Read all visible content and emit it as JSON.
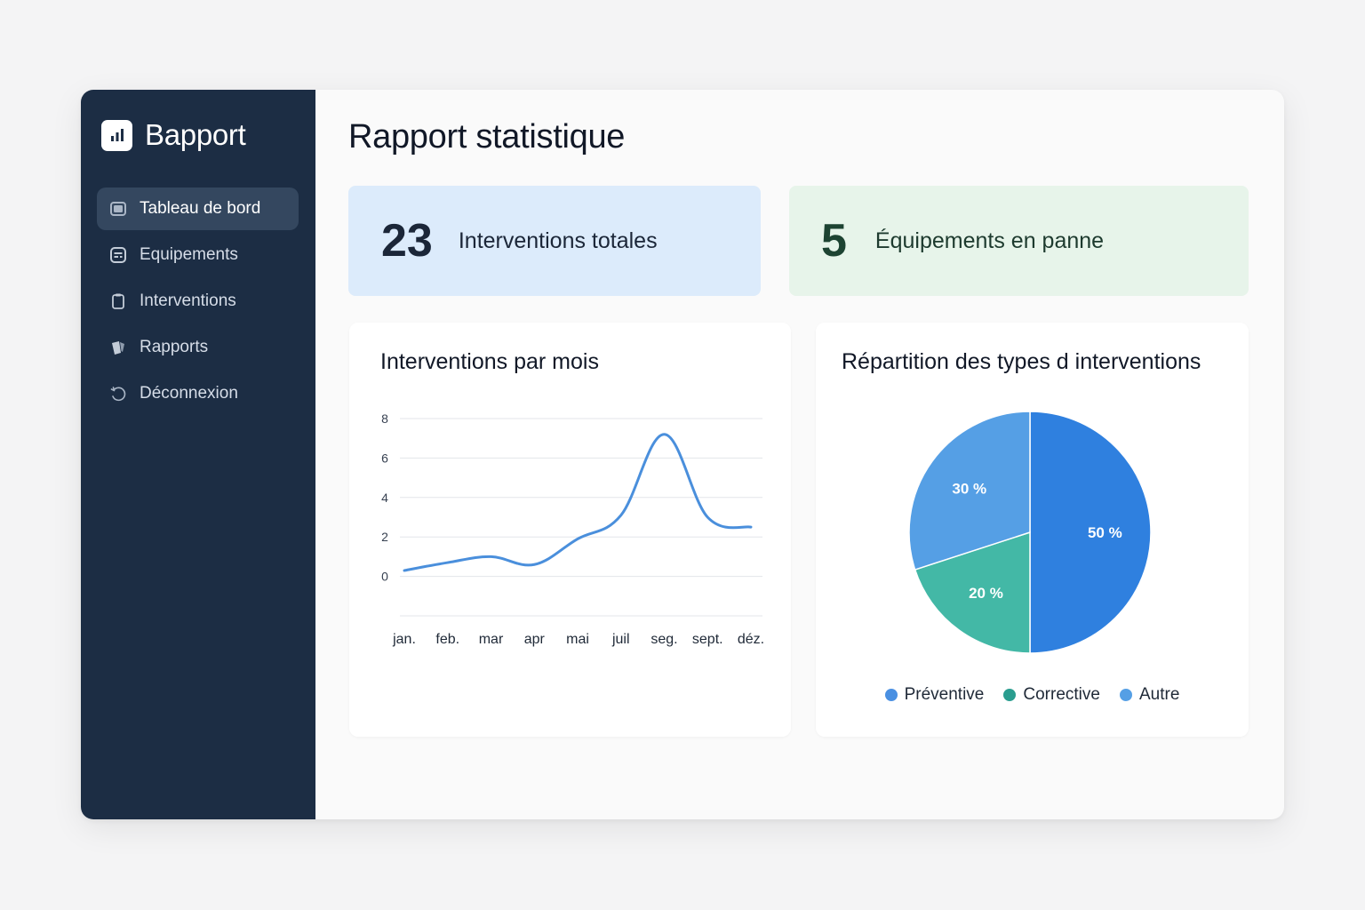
{
  "app": {
    "title": "Bapport"
  },
  "sidebar": {
    "items": [
      {
        "label": "Tableau de bord",
        "icon": "dashboard-icon",
        "active": true
      },
      {
        "label": "Equipements",
        "icon": "equipment-icon",
        "active": false
      },
      {
        "label": "Interventions",
        "icon": "clipboard-icon",
        "active": false
      },
      {
        "label": "Rapports",
        "icon": "reports-icon",
        "active": false
      },
      {
        "label": "Déconnexion",
        "icon": "logout-icon",
        "active": false
      }
    ]
  },
  "main": {
    "title": "Rapport statistique",
    "stats": [
      {
        "value": "23",
        "label": "Interventions totales",
        "bg": "#dcebfb"
      },
      {
        "value": "5",
        "label": "Équipements en panne",
        "bg": "#e7f4ea"
      }
    ],
    "line_card": {
      "title": "Interventions par mois"
    },
    "pie_card": {
      "title": "Répartition des types d interventions"
    }
  },
  "colors": {
    "sidebar_bg": "#1c2d44",
    "line": "#4a8fdc",
    "preventive": "#2f80df",
    "corrective": "#43b8a6",
    "autre": "#559fe5"
  },
  "chart_data": [
    {
      "type": "line",
      "title": "Interventions par mois",
      "categories": [
        "jan.",
        "feb.",
        "mar",
        "apr",
        "mai",
        "juil",
        "seg.",
        "sept.",
        "déz."
      ],
      "values": [
        0.3,
        0.7,
        1.0,
        0.6,
        1.9,
        3.1,
        7.2,
        3.0,
        2.5
      ],
      "yticks": [
        8,
        6,
        4,
        2,
        0
      ],
      "ylim": [
        -2,
        8
      ],
      "grid": true
    },
    {
      "type": "pie",
      "title": "Répartition des types d interventions",
      "slices": [
        {
          "name": "Préventive",
          "value": 50,
          "label": "50 %",
          "color": "#2f80df"
        },
        {
          "name": "Corrective",
          "value": 20,
          "label": "20 %",
          "color": "#43b8a6"
        },
        {
          "name": "Autre",
          "value": 30,
          "label": "30 %",
          "color": "#559fe5"
        }
      ],
      "legend": "bottom"
    }
  ]
}
